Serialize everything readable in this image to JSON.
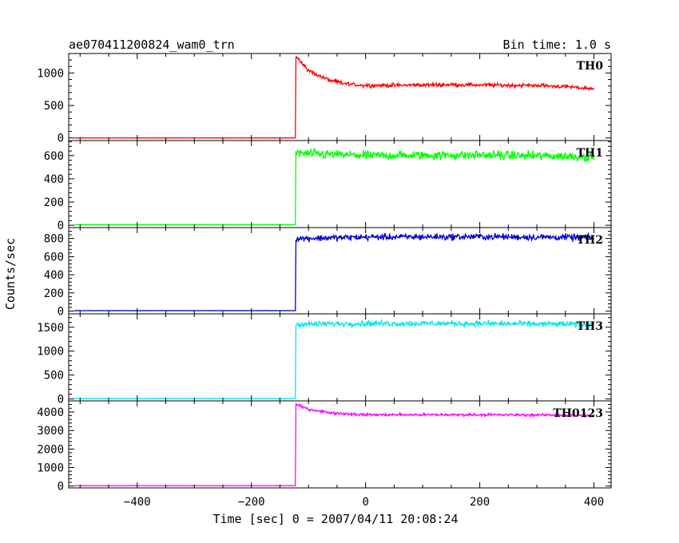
{
  "chart_data": {
    "type": "line",
    "title": "ae070411200824_wam0_trn",
    "subtitle": "Bin time: 1.0 s",
    "xlabel": "Time [sec] 0 = 2007/04/11 20:08:24",
    "ylabel": "Counts/sec",
    "xlim": [
      -520,
      430
    ],
    "x_ticks": [
      -400,
      -200,
      0,
      200,
      400
    ],
    "x_tick_labels": [
      "−400",
      "−200",
      "0",
      "200",
      "400"
    ],
    "onset_time": -122,
    "panels": [
      {
        "name": "TH0",
        "color": "#ff0000",
        "ylim": [
          -40,
          1300
        ],
        "y_ticks": [
          0,
          500,
          1000
        ],
        "y_tick_labels": [
          "0",
          "500",
          "1000"
        ],
        "series": [
          {
            "x": -510,
            "y": 0
          },
          {
            "x": -123,
            "y": 0
          },
          {
            "x": -122,
            "y": 1270
          },
          {
            "x": -110,
            "y": 1130
          },
          {
            "x": -100,
            "y": 1040
          },
          {
            "x": -80,
            "y": 950
          },
          {
            "x": -60,
            "y": 880
          },
          {
            "x": -40,
            "y": 840
          },
          {
            "x": -20,
            "y": 820
          },
          {
            "x": 0,
            "y": 810
          },
          {
            "x": 50,
            "y": 810
          },
          {
            "x": 100,
            "y": 815
          },
          {
            "x": 150,
            "y": 820
          },
          {
            "x": 200,
            "y": 815
          },
          {
            "x": 250,
            "y": 810
          },
          {
            "x": 300,
            "y": 810
          },
          {
            "x": 350,
            "y": 790
          },
          {
            "x": 380,
            "y": 770
          },
          {
            "x": 400,
            "y": 760
          }
        ],
        "noise": 30
      },
      {
        "name": "TH1",
        "color": "#00ff00",
        "ylim": [
          -20,
          730
        ],
        "y_ticks": [
          0,
          200,
          400,
          600
        ],
        "y_tick_labels": [
          "0",
          "200",
          "400",
          "600"
        ],
        "series": [
          {
            "x": -510,
            "y": 5
          },
          {
            "x": -123,
            "y": 5
          },
          {
            "x": -122,
            "y": 620
          },
          {
            "x": 0,
            "y": 600
          },
          {
            "x": 200,
            "y": 605
          },
          {
            "x": 400,
            "y": 590
          }
        ],
        "noise": 40
      },
      {
        "name": "TH2",
        "color": "#0000cc",
        "ylim": [
          -30,
          920
        ],
        "y_ticks": [
          0,
          200,
          400,
          600,
          800
        ],
        "y_tick_labels": [
          "0",
          "200",
          "400",
          "600",
          "800"
        ],
        "series": [
          {
            "x": -510,
            "y": 5
          },
          {
            "x": -123,
            "y": 5
          },
          {
            "x": -122,
            "y": 800
          },
          {
            "x": 0,
            "y": 815
          },
          {
            "x": 200,
            "y": 820
          },
          {
            "x": 400,
            "y": 810
          }
        ],
        "noise": 35
      },
      {
        "name": "TH3",
        "color": "#00e5ee",
        "ylim": [
          -40,
          1780
        ],
        "y_ticks": [
          0,
          500,
          1000,
          1500
        ],
        "y_tick_labels": [
          "0",
          "500",
          "1000",
          "1500"
        ],
        "series": [
          {
            "x": -510,
            "y": 10
          },
          {
            "x": -123,
            "y": 10
          },
          {
            "x": -122,
            "y": 1560
          },
          {
            "x": 0,
            "y": 1580
          },
          {
            "x": 200,
            "y": 1575
          },
          {
            "x": 400,
            "y": 1560
          }
        ],
        "noise": 60
      },
      {
        "name": "TH0123",
        "color": "#ff00ff",
        "ylim": [
          -100,
          4600
        ],
        "y_ticks": [
          0,
          1000,
          2000,
          3000,
          4000
        ],
        "y_tick_labels": [
          "0",
          "1000",
          "2000",
          "3000",
          "4000"
        ],
        "series": [
          {
            "x": -510,
            "y": 20
          },
          {
            "x": -123,
            "y": 20
          },
          {
            "x": -122,
            "y": 4400
          },
          {
            "x": -100,
            "y": 4150
          },
          {
            "x": -60,
            "y": 3950
          },
          {
            "x": 0,
            "y": 3850
          },
          {
            "x": 200,
            "y": 3850
          },
          {
            "x": 350,
            "y": 3830
          },
          {
            "x": 400,
            "y": 3780
          }
        ],
        "noise": 70
      }
    ]
  }
}
